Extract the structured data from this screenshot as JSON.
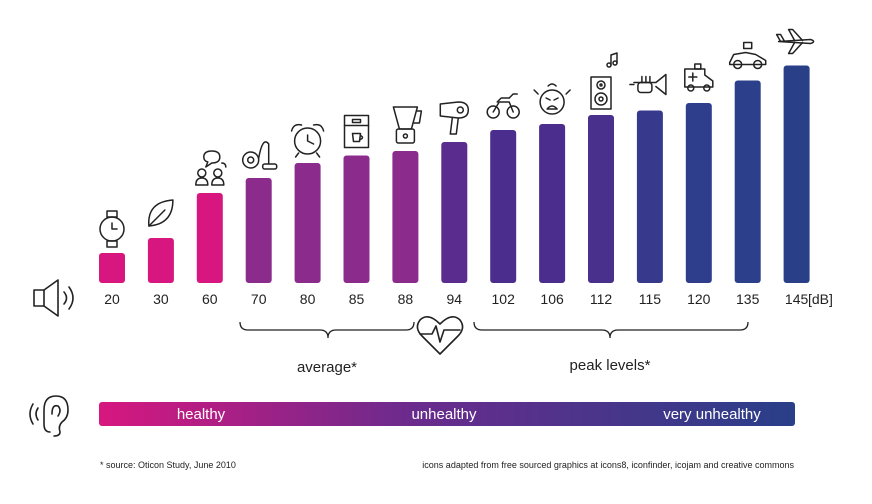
{
  "chart_data": {
    "type": "bar",
    "unit_label": "[dB]",
    "categories": [
      "20",
      "30",
      "60",
      "70",
      "80",
      "85",
      "88",
      "94",
      "102",
      "106",
      "112",
      "115",
      "120",
      "135",
      "145"
    ],
    "values": [
      20,
      30,
      60,
      70,
      80,
      85,
      88,
      94,
      102,
      106,
      112,
      115,
      120,
      135,
      145
    ],
    "icons": [
      "watch-icon",
      "leaf-icon",
      "conversation-icon",
      "vacuum-cleaner-icon",
      "alarm-clock-icon",
      "coffee-machine-icon",
      "blender-icon",
      "hair-dryer-icon",
      "motorcycle-icon",
      "crying-baby-icon",
      "speaker-music-icon",
      "trumpet-icon",
      "ambulance-icon",
      "race-car-icon",
      "airplane-icon"
    ],
    "bar_colors": [
      "#d7177f",
      "#d7177f",
      "#d7177f",
      "#8b2b8c",
      "#8b2b8c",
      "#8b2b8c",
      "#8b2b8c",
      "#5a2c8d",
      "#4a2d8d",
      "#4a2d8d",
      "#48308c",
      "#373a8c",
      "#2e3e8c",
      "#2b3f8a",
      "#293f88"
    ],
    "ylim": [
      0,
      150
    ]
  },
  "groups": {
    "average_label": "average*",
    "peak_label": "peak levels*"
  },
  "scale_bar": {
    "healthy": "healthy",
    "unhealthy": "unhealthy",
    "very_unhealthy": "very unhealthy",
    "start_color": "#d7177f",
    "end_color": "#293f88"
  },
  "footnotes": {
    "source": "* source: Oticon Study, June 2010",
    "credits": "icons adapted from free sourced graphics at icons8, iconfinder, icojam and creative commons"
  },
  "side_icons": {
    "speaker": "speaker-volume-icon",
    "heart": "heartbeat-icon",
    "ear": "ear-icon"
  }
}
